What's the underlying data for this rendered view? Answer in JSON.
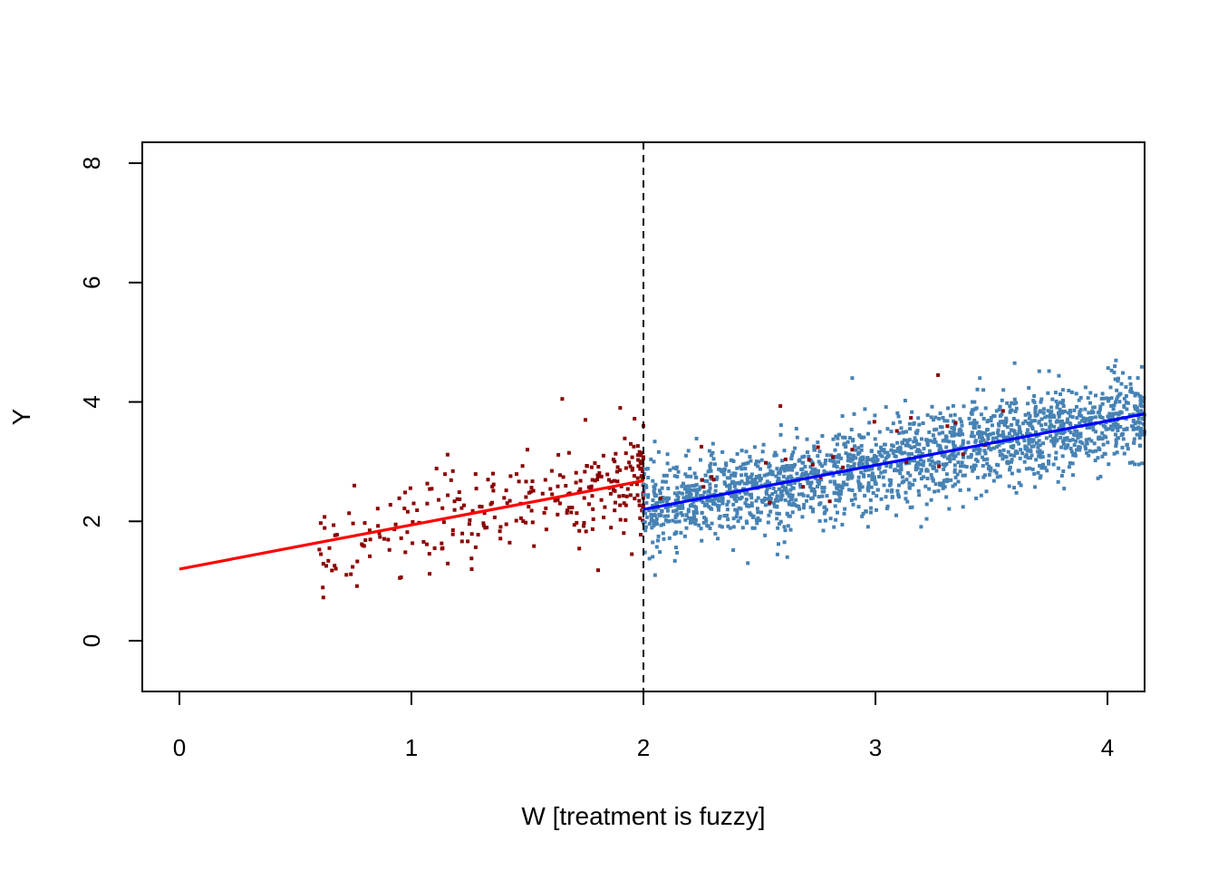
{
  "chart_data": {
    "type": "scatter",
    "title": "",
    "xlabel": "W [treatment is fuzzy]",
    "ylabel": "Y",
    "xlim": [
      -0.16,
      4.16
    ],
    "ylim": [
      -0.85,
      8.35
    ],
    "x_ticks": [
      0,
      1,
      2,
      3,
      4
    ],
    "x_tick_labels": [
      "0",
      "1",
      "2",
      "3",
      "4"
    ],
    "y_ticks": [
      0,
      2,
      4,
      6,
      8
    ],
    "y_tick_labels": [
      "0",
      "2",
      "4",
      "6",
      "8"
    ],
    "grid": false,
    "legend": "none",
    "cutoff": {
      "x": 2,
      "style": "dashed",
      "color": "#000000"
    },
    "series": [
      {
        "kind": "points",
        "color": "#8B0000",
        "x_range": [
          0.6,
          2.0
        ],
        "approx_count": 300,
        "sample_points": [
          [
            0.61,
            1.45
          ],
          [
            0.82,
            1.85
          ],
          [
            0.95,
            1.05
          ],
          [
            1.01,
            2.3
          ],
          [
            1.1,
            1.55
          ],
          [
            1.26,
            1.2
          ],
          [
            1.33,
            2.7
          ],
          [
            1.5,
            3.2
          ],
          [
            1.65,
            4.05
          ],
          [
            1.75,
            3.7
          ],
          [
            1.9,
            3.9
          ],
          [
            1.95,
            1.45
          ],
          [
            2.0,
            3.6
          ]
        ]
      },
      {
        "kind": "points",
        "color": "#4682B4",
        "x_range": [
          2.0,
          4.16
        ],
        "approx_count": 2000,
        "sample_points": [
          [
            2.05,
            1.1
          ],
          [
            2.3,
            3.3
          ],
          [
            2.45,
            1.3
          ],
          [
            2.62,
            1.4
          ],
          [
            2.9,
            4.4
          ],
          [
            3.45,
            4.4
          ],
          [
            3.6,
            4.65
          ],
          [
            3.97,
            2.75
          ],
          [
            4.1,
            4.3
          ],
          [
            4.16,
            3.5
          ]
        ]
      },
      {
        "kind": "points",
        "color": "#8B0000",
        "x_range": [
          2.0,
          3.6
        ],
        "approx_count": 30,
        "sample_points": [
          [
            2.25,
            3.25
          ],
          [
            2.59,
            3.93
          ],
          [
            2.9,
            3.2
          ],
          [
            3.27,
            4.45
          ],
          [
            3.55,
            3.85
          ]
        ]
      },
      {
        "kind": "line",
        "color": "#FF0000",
        "x": [
          0,
          2
        ],
        "y": [
          1.2,
          2.68
        ]
      },
      {
        "kind": "line",
        "color": "#0000FF",
        "x": [
          2,
          4.16
        ],
        "y": [
          2.2,
          3.8
        ]
      }
    ]
  }
}
